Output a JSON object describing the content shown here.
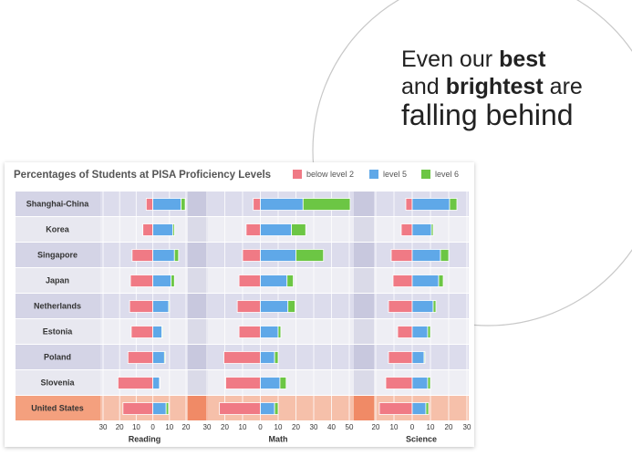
{
  "headline": {
    "lines": [
      [
        {
          "text": "Even our",
          "bold": false
        },
        {
          "text": "best",
          "bold": true
        }
      ],
      [
        {
          "text": "and",
          "bold": false
        },
        {
          "text": "brightest",
          "bold": true
        },
        {
          "text": "are",
          "bold": false
        }
      ],
      [
        {
          "text": "falling behind",
          "bold": false
        }
      ]
    ]
  },
  "chart_data": {
    "type": "bar",
    "title": "Percentages of Students at PISA Proficiency Levels",
    "categories": [
      "Shanghai-China",
      "Korea",
      "Singapore",
      "Japan",
      "Netherlands",
      "Estonia",
      "Poland",
      "Slovenia",
      "United States"
    ],
    "highlight_index": 8,
    "series": [
      {
        "name": "below level 2",
        "color": "#f07a85"
      },
      {
        "name": "level 5",
        "color": "#5fa8e8"
      },
      {
        "name": "level 6",
        "color": "#6cc644"
      }
    ],
    "panels": [
      {
        "label": "Reading",
        "xlim": [
          -30,
          20
        ],
        "xticks": [
          {
            "value": -30,
            "label": "30"
          },
          {
            "value": -20,
            "label": "20"
          },
          {
            "value": -10,
            "label": "10"
          },
          0,
          10,
          20
        ],
        "values": [
          [
            -4,
            -6,
            -12.5,
            -13.5,
            -14,
            -13,
            -15,
            -21,
            -18
          ],
          [
            17,
            12,
            13,
            11,
            9.5,
            5.5,
            7,
            4,
            8
          ],
          [
            2.5,
            1,
            2.5,
            2,
            0.5,
            0.5,
            0.5,
            0.3,
            1.5
          ]
        ]
      },
      {
        "label": "Math",
        "xlim": [
          -30,
          50
        ],
        "xticks": [
          {
            "value": -30,
            "label": "30"
          },
          {
            "value": -20,
            "label": "20"
          },
          {
            "value": -10,
            "label": "10"
          },
          0,
          10,
          20,
          30,
          40,
          50
        ],
        "values": [
          [
            -4,
            -8,
            -10,
            -12,
            -13,
            -12,
            -20.5,
            -19.5,
            -23
          ],
          [
            24,
            17.5,
            20,
            15,
            15.5,
            10,
            8,
            11,
            8
          ],
          [
            26.5,
            8,
            15.5,
            3.5,
            4,
            1.5,
            2,
            3.5,
            2
          ]
        ]
      },
      {
        "label": "Science",
        "xlim": [
          -20,
          30
        ],
        "xticks": [
          {
            "value": -20,
            "label": "20"
          },
          {
            "value": -10,
            "label": "10"
          },
          0,
          10,
          20,
          30
        ],
        "values": [
          [
            -3.5,
            -6,
            -11.5,
            -10.5,
            -13,
            -8,
            -13,
            -14.5,
            -18
          ],
          [
            20.5,
            10.5,
            15.5,
            14.5,
            11.5,
            8.5,
            6.5,
            8.5,
            7.5
          ],
          [
            4,
            1,
            4.5,
            2.5,
            1.5,
            1.5,
            0.5,
            1.5,
            1.5
          ]
        ]
      }
    ]
  }
}
